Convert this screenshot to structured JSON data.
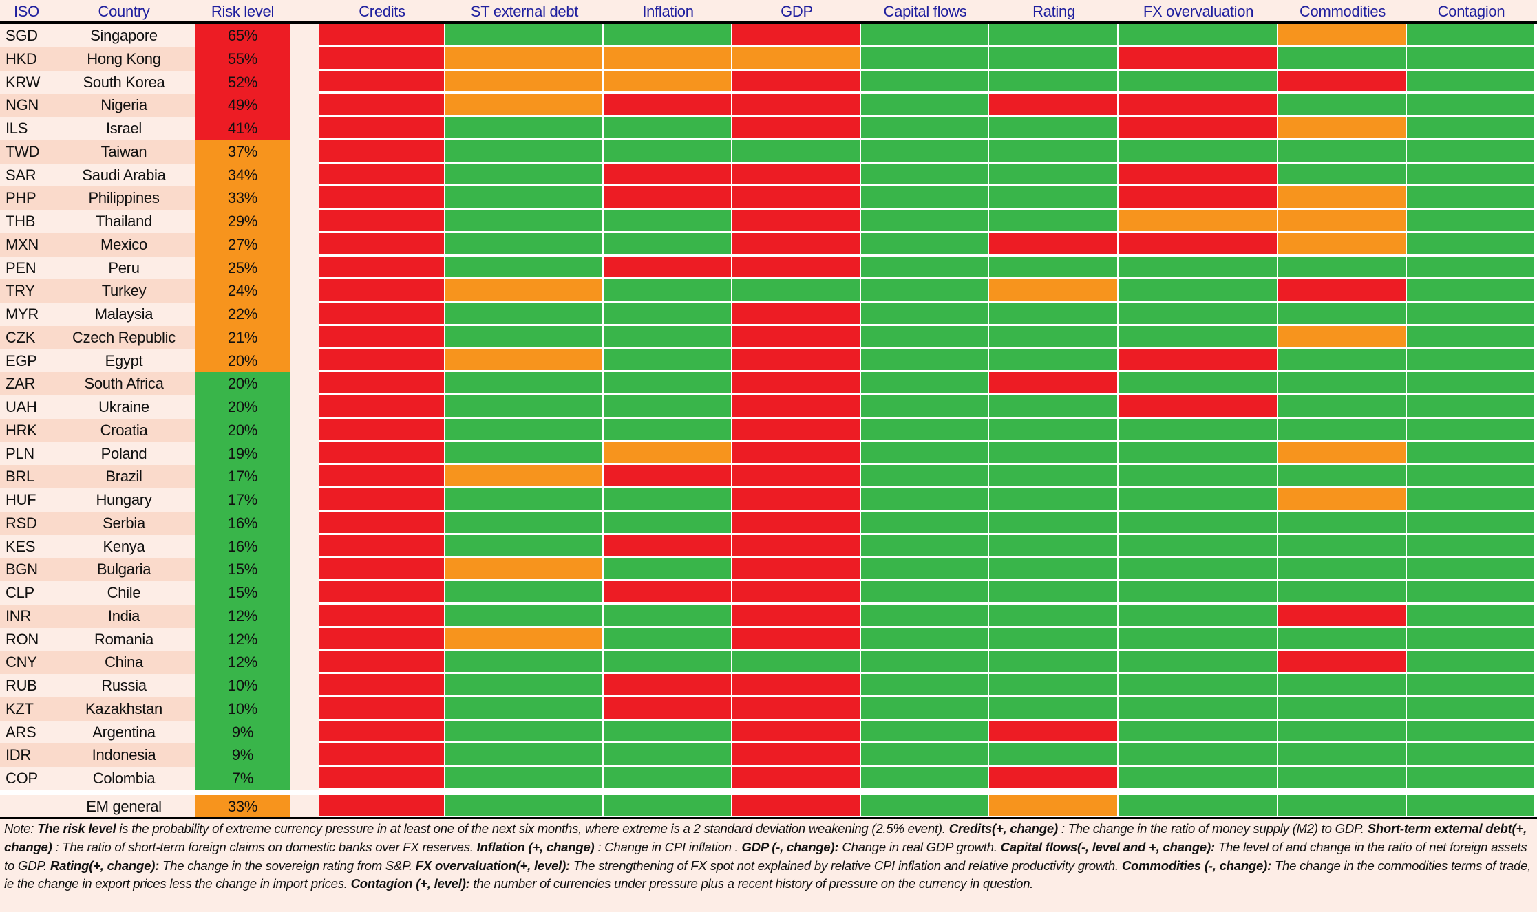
{
  "colors": {
    "red": "#ED1C24",
    "orange": "#F7941D",
    "green": "#39B54A",
    "header_text": "#1F1F9E",
    "row_light": "#FDEDE6",
    "row_dark": "#FADACB"
  },
  "headers": {
    "iso": "ISO",
    "country": "Country",
    "risk": "Risk level",
    "signals": [
      "Credits",
      "ST external debt",
      "Inflation",
      "GDP",
      "Capital flows",
      "Rating",
      "FX overvaluation",
      "Commodities",
      "Contagion"
    ]
  },
  "chart_data": {
    "type": "heatmap",
    "legend": "none",
    "value_levels": [
      "red",
      "orange",
      "green"
    ],
    "rows": [
      {
        "iso": "SGD",
        "country": "Singapore",
        "risk": "65%",
        "risk_color": "red",
        "signals": [
          "red",
          "green",
          "green",
          "red",
          "green",
          "green",
          "green",
          "orange",
          "green"
        ]
      },
      {
        "iso": "HKD",
        "country": "Hong Kong",
        "risk": "55%",
        "risk_color": "red",
        "signals": [
          "red",
          "orange",
          "orange",
          "orange",
          "green",
          "green",
          "red",
          "green",
          "green"
        ]
      },
      {
        "iso": "KRW",
        "country": "South Korea",
        "risk": "52%",
        "risk_color": "red",
        "signals": [
          "red",
          "orange",
          "orange",
          "red",
          "green",
          "green",
          "green",
          "red",
          "green"
        ]
      },
      {
        "iso": "NGN",
        "country": "Nigeria",
        "risk": "49%",
        "risk_color": "red",
        "signals": [
          "red",
          "orange",
          "red",
          "red",
          "green",
          "red",
          "red",
          "green",
          "green"
        ]
      },
      {
        "iso": "ILS",
        "country": "Israel",
        "risk": "41%",
        "risk_color": "red",
        "signals": [
          "red",
          "green",
          "green",
          "red",
          "green",
          "green",
          "red",
          "orange",
          "green"
        ]
      },
      {
        "iso": "TWD",
        "country": "Taiwan",
        "risk": "37%",
        "risk_color": "orange",
        "signals": [
          "red",
          "green",
          "green",
          "green",
          "green",
          "green",
          "green",
          "green",
          "green"
        ]
      },
      {
        "iso": "SAR",
        "country": "Saudi Arabia",
        "risk": "34%",
        "risk_color": "orange",
        "signals": [
          "red",
          "green",
          "red",
          "red",
          "green",
          "green",
          "red",
          "green",
          "green"
        ]
      },
      {
        "iso": "PHP",
        "country": "Philippines",
        "risk": "33%",
        "risk_color": "orange",
        "signals": [
          "red",
          "green",
          "red",
          "red",
          "green",
          "green",
          "red",
          "orange",
          "green"
        ]
      },
      {
        "iso": "THB",
        "country": "Thailand",
        "risk": "29%",
        "risk_color": "orange",
        "signals": [
          "red",
          "green",
          "green",
          "red",
          "green",
          "green",
          "orange",
          "orange",
          "green"
        ]
      },
      {
        "iso": "MXN",
        "country": "Mexico",
        "risk": "27%",
        "risk_color": "orange",
        "signals": [
          "red",
          "green",
          "green",
          "red",
          "green",
          "red",
          "red",
          "orange",
          "green"
        ]
      },
      {
        "iso": "PEN",
        "country": "Peru",
        "risk": "25%",
        "risk_color": "orange",
        "signals": [
          "red",
          "green",
          "red",
          "red",
          "green",
          "green",
          "green",
          "green",
          "green"
        ]
      },
      {
        "iso": "TRY",
        "country": "Turkey",
        "risk": "24%",
        "risk_color": "orange",
        "signals": [
          "red",
          "orange",
          "green",
          "green",
          "green",
          "orange",
          "green",
          "red",
          "green"
        ]
      },
      {
        "iso": "MYR",
        "country": "Malaysia",
        "risk": "22%",
        "risk_color": "orange",
        "signals": [
          "red",
          "green",
          "green",
          "red",
          "green",
          "green",
          "green",
          "green",
          "green"
        ]
      },
      {
        "iso": "CZK",
        "country": "Czech Republic",
        "risk": "21%",
        "risk_color": "orange",
        "signals": [
          "red",
          "green",
          "green",
          "red",
          "green",
          "green",
          "green",
          "orange",
          "green"
        ]
      },
      {
        "iso": "EGP",
        "country": "Egypt",
        "risk": "20%",
        "risk_color": "orange",
        "signals": [
          "red",
          "orange",
          "green",
          "red",
          "green",
          "green",
          "red",
          "green",
          "green"
        ]
      },
      {
        "iso": "ZAR",
        "country": "South Africa",
        "risk": "20%",
        "risk_color": "green",
        "signals": [
          "red",
          "green",
          "green",
          "red",
          "green",
          "red",
          "green",
          "green",
          "green"
        ]
      },
      {
        "iso": "UAH",
        "country": "Ukraine",
        "risk": "20%",
        "risk_color": "green",
        "signals": [
          "red",
          "green",
          "green",
          "red",
          "green",
          "green",
          "red",
          "green",
          "green"
        ]
      },
      {
        "iso": "HRK",
        "country": "Croatia",
        "risk": "20%",
        "risk_color": "green",
        "signals": [
          "red",
          "green",
          "green",
          "red",
          "green",
          "green",
          "green",
          "green",
          "green"
        ]
      },
      {
        "iso": "PLN",
        "country": "Poland",
        "risk": "19%",
        "risk_color": "green",
        "signals": [
          "red",
          "green",
          "orange",
          "red",
          "green",
          "green",
          "green",
          "orange",
          "green"
        ]
      },
      {
        "iso": "BRL",
        "country": "Brazil",
        "risk": "17%",
        "risk_color": "green",
        "signals": [
          "red",
          "orange",
          "red",
          "red",
          "green",
          "green",
          "green",
          "green",
          "green"
        ]
      },
      {
        "iso": "HUF",
        "country": "Hungary",
        "risk": "17%",
        "risk_color": "green",
        "signals": [
          "red",
          "green",
          "green",
          "red",
          "green",
          "green",
          "green",
          "orange",
          "green"
        ]
      },
      {
        "iso": "RSD",
        "country": "Serbia",
        "risk": "16%",
        "risk_color": "green",
        "signals": [
          "red",
          "green",
          "green",
          "red",
          "green",
          "green",
          "green",
          "green",
          "green"
        ]
      },
      {
        "iso": "KES",
        "country": "Kenya",
        "risk": "16%",
        "risk_color": "green",
        "signals": [
          "red",
          "green",
          "red",
          "red",
          "green",
          "green",
          "green",
          "green",
          "green"
        ]
      },
      {
        "iso": "BGN",
        "country": "Bulgaria",
        "risk": "15%",
        "risk_color": "green",
        "signals": [
          "red",
          "orange",
          "green",
          "red",
          "green",
          "green",
          "green",
          "green",
          "green"
        ]
      },
      {
        "iso": "CLP",
        "country": "Chile",
        "risk": "15%",
        "risk_color": "green",
        "signals": [
          "red",
          "green",
          "red",
          "red",
          "green",
          "green",
          "green",
          "green",
          "green"
        ]
      },
      {
        "iso": "INR",
        "country": "India",
        "risk": "12%",
        "risk_color": "green",
        "signals": [
          "red",
          "green",
          "green",
          "red",
          "green",
          "green",
          "green",
          "red",
          "green"
        ]
      },
      {
        "iso": "RON",
        "country": "Romania",
        "risk": "12%",
        "risk_color": "green",
        "signals": [
          "red",
          "orange",
          "green",
          "red",
          "green",
          "green",
          "green",
          "green",
          "green"
        ]
      },
      {
        "iso": "CNY",
        "country": "China",
        "risk": "12%",
        "risk_color": "green",
        "signals": [
          "red",
          "green",
          "green",
          "green",
          "green",
          "green",
          "green",
          "red",
          "green"
        ]
      },
      {
        "iso": "RUB",
        "country": "Russia",
        "risk": "10%",
        "risk_color": "green",
        "signals": [
          "red",
          "green",
          "red",
          "red",
          "green",
          "green",
          "green",
          "green",
          "green"
        ]
      },
      {
        "iso": "KZT",
        "country": "Kazakhstan",
        "risk": "10%",
        "risk_color": "green",
        "signals": [
          "red",
          "green",
          "red",
          "red",
          "green",
          "green",
          "green",
          "green",
          "green"
        ]
      },
      {
        "iso": "ARS",
        "country": "Argentina",
        "risk": "9%",
        "risk_color": "green",
        "signals": [
          "red",
          "green",
          "green",
          "red",
          "green",
          "red",
          "green",
          "green",
          "green"
        ]
      },
      {
        "iso": "IDR",
        "country": "Indonesia",
        "risk": "9%",
        "risk_color": "green",
        "signals": [
          "red",
          "green",
          "green",
          "red",
          "green",
          "green",
          "green",
          "green",
          "green"
        ]
      },
      {
        "iso": "COP",
        "country": "Colombia",
        "risk": "7%",
        "risk_color": "green",
        "signals": [
          "red",
          "green",
          "green",
          "red",
          "green",
          "red",
          "green",
          "green",
          "green"
        ]
      }
    ],
    "summary": {
      "iso": "",
      "country": "EM general",
      "risk": "33%",
      "risk_color": "orange",
      "signals": [
        "red",
        "green",
        "green",
        "red",
        "green",
        "orange",
        "green",
        "green",
        "green"
      ]
    }
  },
  "note": [
    {
      "b": false,
      "t": "Note: "
    },
    {
      "b": true,
      "t": "The risk level "
    },
    {
      "b": false,
      "t": " is the probability of extreme currency pressure in at least one of the next six months, where extreme is a 2 standard deviation weakening (2.5% event).  "
    },
    {
      "b": true,
      "t": "Credits(+, change)"
    },
    {
      "b": false,
      "t": " : The change in the ratio of money supply (M2) to GDP. "
    },
    {
      "b": true,
      "t": "Short-term external debt(+, change)"
    },
    {
      "b": false,
      "t": " : The ratio of short-term foreign claims on domestic banks over FX reserves.  "
    },
    {
      "b": true,
      "t": "Inflation (+, change)"
    },
    {
      "b": false,
      "t": " : Change in CPI inflation .  "
    },
    {
      "b": true,
      "t": "GDP (-, change):"
    },
    {
      "b": false,
      "t": " Change in real GDP growth.  "
    },
    {
      "b": true,
      "t": "Capital flows(-, level and +, change):"
    },
    {
      "b": false,
      "t": " The level of and change in the ratio of net foreign assets to GDP.  "
    },
    {
      "b": true,
      "t": "Rating(+, change):"
    },
    {
      "b": false,
      "t": " The change in the sovereign rating from S&P.  "
    },
    {
      "b": true,
      "t": "FX overvaluation(+, level):"
    },
    {
      "b": false,
      "t": " The strengthening of FX spot not explained by relative CPI inflation and relative productivity growth.  "
    },
    {
      "b": true,
      "t": "Commodities (-, change):"
    },
    {
      "b": false,
      "t": " The change in the commodities terms of trade, ie the change in export prices less the change in import prices.  "
    },
    {
      "b": true,
      "t": "Contagion (+, level):"
    },
    {
      "b": false,
      "t": " the number of currencies under pressure plus a recent history of pressure on the currency in question."
    }
  ]
}
